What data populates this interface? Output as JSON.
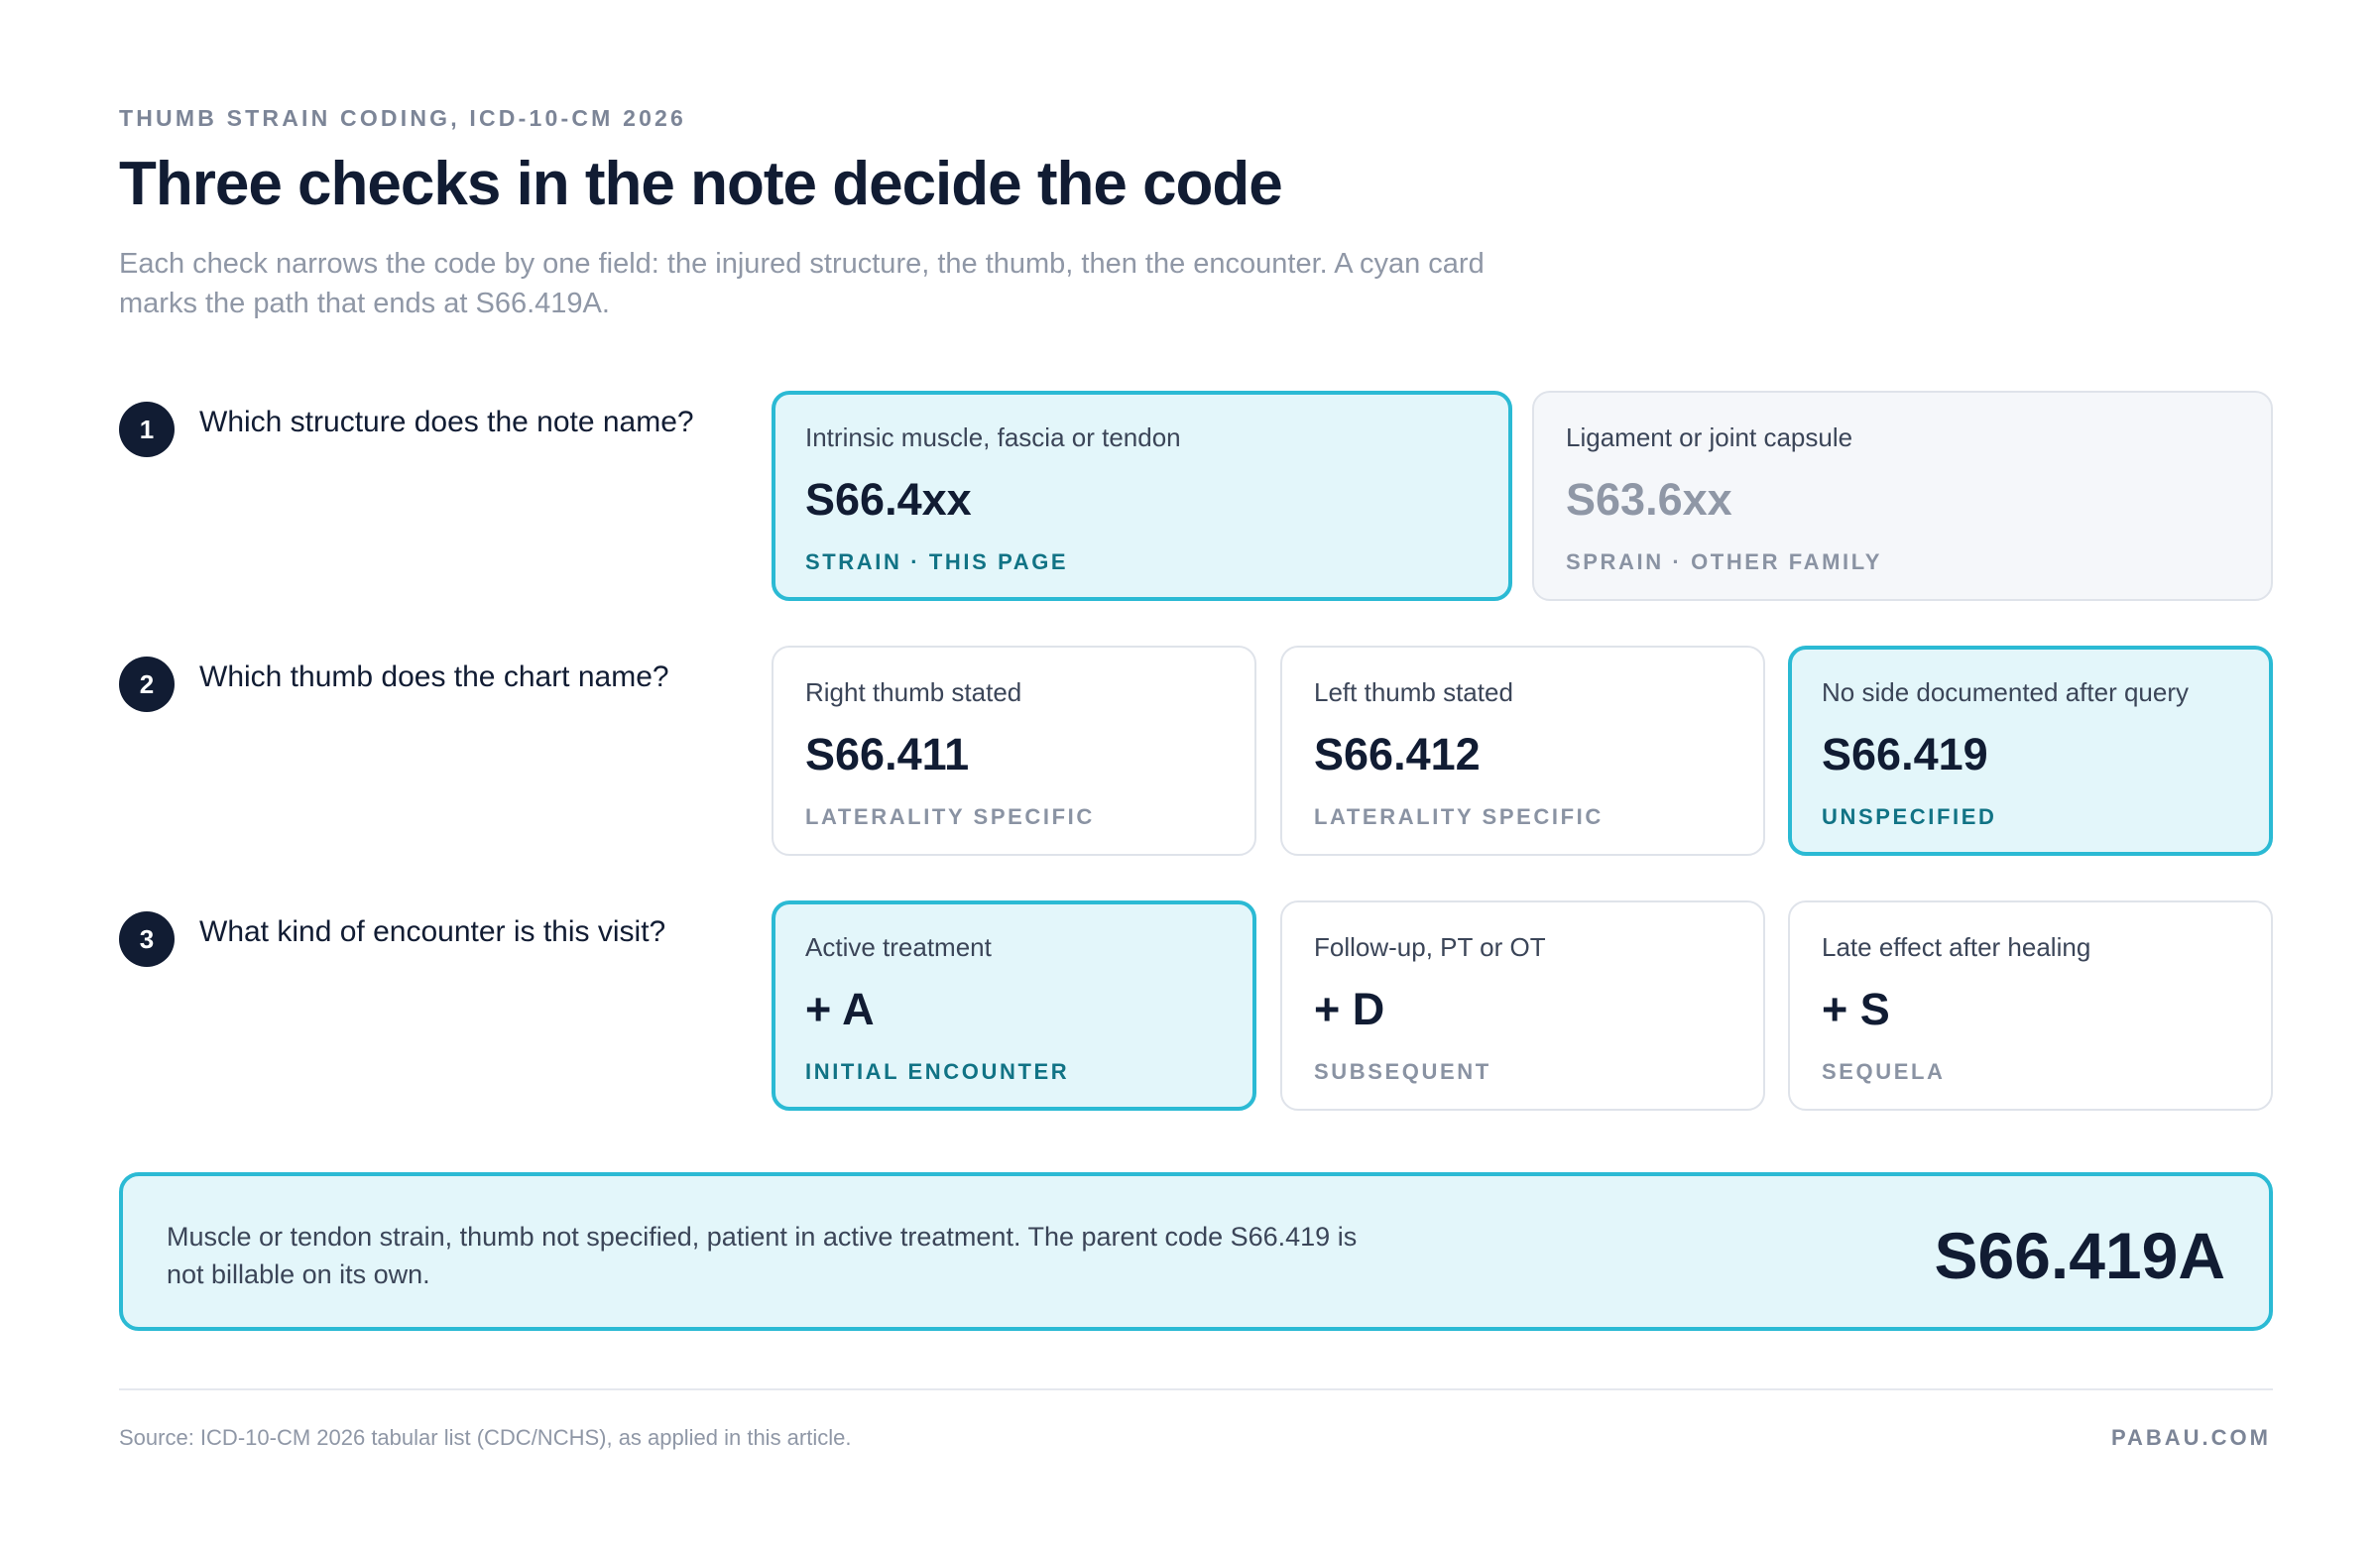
{
  "header": {
    "eyebrow": "THUMB STRAIN CODING, ICD-10-CM 2026",
    "title": "Three checks in the note decide the code",
    "subtitle": "Each check narrows the code by one field: the injured structure, the thumb, then the encounter. A cyan card marks the path that ends at S66.419A."
  },
  "steps": [
    {
      "number": "1",
      "question": "Which structure does the note name?",
      "options": [
        {
          "label": "Intrinsic muscle, fascia or tendon",
          "code": "S66.4xx",
          "tag": "STRAIN · THIS PAGE",
          "state": "selected"
        },
        {
          "label": "Ligament or joint capsule",
          "code": "S63.6xx",
          "tag": "SPRAIN · OTHER FAMILY",
          "state": "muted"
        }
      ]
    },
    {
      "number": "2",
      "question": "Which thumb does the chart name?",
      "options": [
        {
          "label": "Right thumb stated",
          "code": "S66.411",
          "tag": "LATERALITY SPECIFIC",
          "state": "default"
        },
        {
          "label": "Left thumb stated",
          "code": "S66.412",
          "tag": "LATERALITY SPECIFIC",
          "state": "default"
        },
        {
          "label": "No side documented after query",
          "code": "S66.419",
          "tag": "UNSPECIFIED",
          "state": "selected"
        }
      ]
    },
    {
      "number": "3",
      "question": "What kind of encounter is this visit?",
      "options": [
        {
          "label": "Active treatment",
          "code": "+ A",
          "tag": "INITIAL ENCOUNTER",
          "state": "selected"
        },
        {
          "label": "Follow-up, PT or OT",
          "code": "+ D",
          "tag": "SUBSEQUENT",
          "state": "default"
        },
        {
          "label": "Late effect after healing",
          "code": "+ S",
          "tag": "SEQUELA",
          "state": "default"
        }
      ]
    }
  ],
  "result": {
    "text": "Muscle or tendon strain, thumb not specified, patient in active treatment. The parent code S66.419 is not billable on its own.",
    "code": "S66.419A"
  },
  "footer": {
    "source": "Source: ICD-10-CM 2026 tabular list (CDC/NCHS), as applied in this article.",
    "brand": "PABAU.COM"
  },
  "colors": {
    "accent_border": "#2bbad4",
    "accent_fill": "#e3f6fa",
    "accent_tag": "#117385",
    "ink": "#111c33",
    "muted_text": "#8f97a6"
  }
}
